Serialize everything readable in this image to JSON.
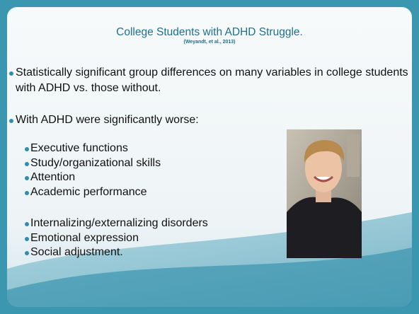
{
  "header": {
    "title": "College Students with ADHD Struggle.",
    "citation": "(Weyandt, et al., 2013)"
  },
  "bullets": [
    "Statistically significant group differences on many variables in college students with ADHD vs. those without.",
    "With ADHD were significantly worse:"
  ],
  "sub_groups": [
    [
      "Executive functions",
      "Study/organizational skills",
      "Attention",
      "Academic performance"
    ],
    [
      "Internalizing/externalizing disorders",
      "Emotional expression",
      "Social adjustment."
    ]
  ]
}
